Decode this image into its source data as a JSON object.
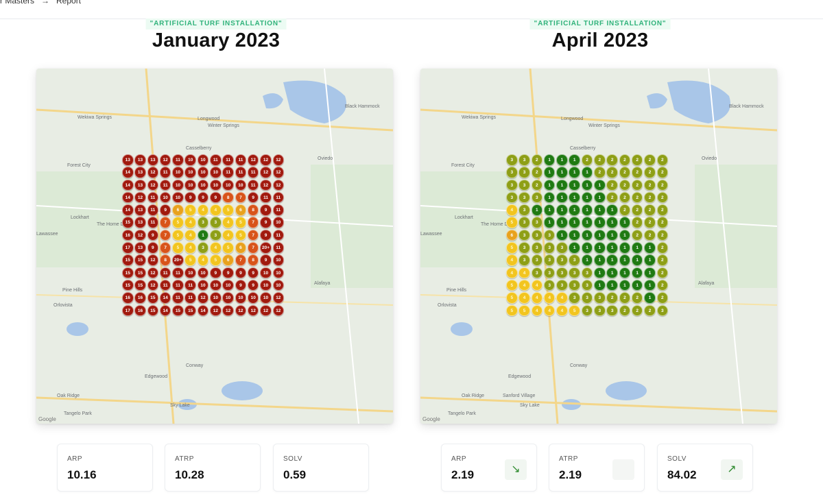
{
  "breadcrumb": {
    "left": "r Masters",
    "current": "Report",
    "arrow_icon": "arrow-right-icon"
  },
  "colors": {
    "dark_red": "#a11a0e",
    "orange_red": "#d8541a",
    "orange": "#e8a21e",
    "yellow": "#f2c51f",
    "olive": "#8e9f16",
    "dark_green": "#1f7a12",
    "tag_text": "#2fb27a"
  },
  "panels": [
    {
      "tag": "\"ARTIFICIAL TURF INSTALLATION\"",
      "title": "January 2023",
      "grid": [
        [
          "13",
          "13",
          "13",
          "12",
          "11",
          "10",
          "10",
          "11",
          "11",
          "11",
          "12",
          "12",
          "12"
        ],
        [
          "14",
          "13",
          "12",
          "11",
          "10",
          "10",
          "10",
          "10",
          "11",
          "11",
          "11",
          "12",
          "12"
        ],
        [
          "14",
          "13",
          "12",
          "11",
          "10",
          "10",
          "10",
          "10",
          "10",
          "10",
          "11",
          "12",
          "12"
        ],
        [
          "14",
          "12",
          "11",
          "10",
          "10",
          "9",
          "9",
          "9",
          "8",
          "7",
          "9",
          "11",
          "11"
        ],
        [
          "14",
          "13",
          "11",
          "9",
          "6",
          "5",
          "4",
          "4",
          "5",
          "6",
          "8",
          "9",
          "11"
        ],
        [
          "15",
          "13",
          "11",
          "7",
          "5",
          "4",
          "3",
          "3",
          "4",
          "5",
          "7",
          "9",
          "10"
        ],
        [
          "16",
          "12",
          "9",
          "7",
          "5",
          "4",
          "1",
          "3",
          "4",
          "5",
          "7",
          "9",
          "11"
        ],
        [
          "17",
          "13",
          "9",
          "7",
          "5",
          "4",
          "3",
          "4",
          "5",
          "6",
          "7",
          "20+",
          "11"
        ],
        [
          "15",
          "15",
          "12",
          "8",
          "20+",
          "5",
          "4",
          "5",
          "6",
          "7",
          "8",
          "9",
          "10"
        ],
        [
          "15",
          "15",
          "12",
          "11",
          "11",
          "10",
          "10",
          "9",
          "9",
          "9",
          "9",
          "10",
          "10"
        ],
        [
          "15",
          "15",
          "12",
          "11",
          "11",
          "11",
          "10",
          "10",
          "10",
          "9",
          "9",
          "10",
          "10"
        ],
        [
          "16",
          "16",
          "15",
          "14",
          "11",
          "11",
          "12",
          "10",
          "10",
          "10",
          "10",
          "10",
          "12"
        ],
        [
          "17",
          "16",
          "15",
          "14",
          "15",
          "15",
          "14",
          "12",
          "12",
          "12",
          "12",
          "12",
          "12"
        ]
      ],
      "stats": [
        {
          "label": "ARP",
          "value": "10.16",
          "trend": ""
        },
        {
          "label": "ATRP",
          "value": "10.28",
          "trend": ""
        },
        {
          "label": "SOLV",
          "value": "0.59",
          "trend": ""
        }
      ]
    },
    {
      "tag": "\"ARTIFICIAL TURF INSTALLATION\"",
      "title": "April 2023",
      "grid": [
        [
          "3",
          "3",
          "2",
          "1",
          "1",
          "1",
          "2",
          "2",
          "2",
          "2",
          "2",
          "2",
          "2"
        ],
        [
          "3",
          "3",
          "2",
          "1",
          "1",
          "1",
          "1",
          "2",
          "2",
          "2",
          "2",
          "2",
          "2"
        ],
        [
          "3",
          "3",
          "2",
          "1",
          "1",
          "1",
          "1",
          "1",
          "2",
          "2",
          "2",
          "2",
          "2"
        ],
        [
          "3",
          "3",
          "3",
          "1",
          "1",
          "1",
          "1",
          "1",
          "2",
          "2",
          "2",
          "2",
          "2"
        ],
        [
          "4",
          "3",
          "1",
          "1",
          "1",
          "1",
          "1",
          "1",
          "1",
          "2",
          "2",
          "2",
          "2"
        ],
        [
          "5",
          "3",
          "3",
          "1",
          "1",
          "1",
          "1",
          "1",
          "1",
          "1",
          "2",
          "2",
          "2"
        ],
        [
          "6",
          "3",
          "3",
          "3",
          "1",
          "1",
          "1",
          "1",
          "1",
          "1",
          "2",
          "2",
          "2"
        ],
        [
          "5",
          "3",
          "3",
          "3",
          "3",
          "1",
          "1",
          "1",
          "1",
          "1",
          "1",
          "1",
          "2"
        ],
        [
          "4",
          "3",
          "3",
          "3",
          "3",
          "3",
          "1",
          "1",
          "1",
          "1",
          "1",
          "1",
          "2"
        ],
        [
          "4",
          "4",
          "3",
          "3",
          "3",
          "3",
          "3",
          "1",
          "1",
          "1",
          "1",
          "1",
          "2"
        ],
        [
          "5",
          "4",
          "4",
          "3",
          "3",
          "3",
          "3",
          "1",
          "1",
          "1",
          "1",
          "1",
          "2"
        ],
        [
          "5",
          "4",
          "4",
          "4",
          "4",
          "3",
          "3",
          "3",
          "2",
          "2",
          "2",
          "1",
          "2"
        ],
        [
          "5",
          "5",
          "4",
          "4",
          "4",
          "5",
          "3",
          "3",
          "3",
          "2",
          "2",
          "2",
          "3"
        ]
      ],
      "stats": [
        {
          "label": "ARP",
          "value": "2.19",
          "trend": "↘",
          "trend_icon": "arrow-down-right-icon"
        },
        {
          "label": "ATRP",
          "value": "2.19",
          "trend": "",
          "trend_icon": ""
        },
        {
          "label": "SOLV",
          "value": "84.02",
          "trend": "↗",
          "trend_icon": "arrow-up-right-icon"
        }
      ]
    }
  ],
  "map_labels": [
    "Wekiwa Springs",
    "Longwood",
    "Winter Springs",
    "Black Hammock",
    "Casselberry",
    "Forest City",
    "Oviedo",
    "Lockhart",
    "Lawassee",
    "The Home Depot",
    "Pine Hills",
    "Orlovista",
    "Alafaya",
    "Conway",
    "Edgewood",
    "Oak Ridge",
    "Sky Lake",
    "Tangelo Park",
    "Sanford Village"
  ],
  "map_attribution": "Google"
}
